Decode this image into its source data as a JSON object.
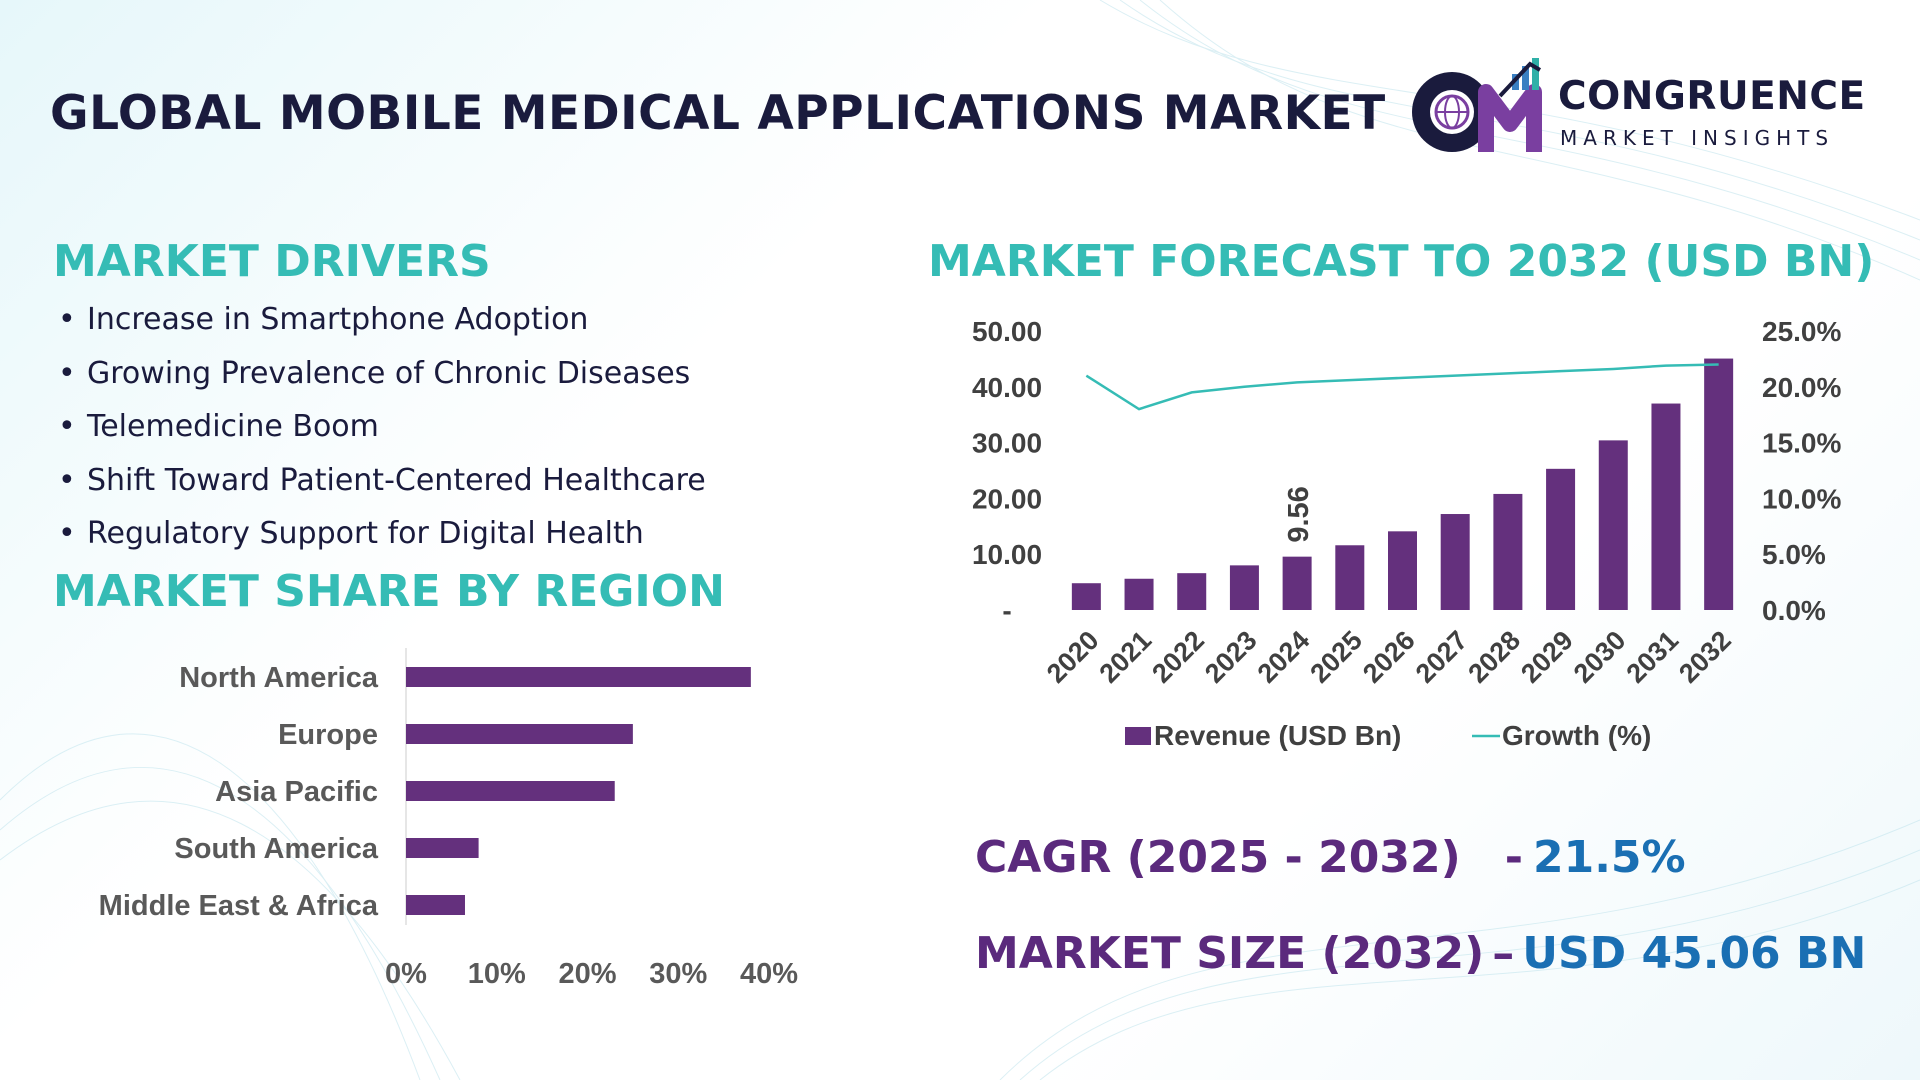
{
  "title": "GLOBAL MOBILE MEDICAL APPLICATIONS MARKET",
  "logo": {
    "name": "CONGRUENCE",
    "tagline": "MARKET INSIGHTS",
    "icon": "cm-globe-chart-logo"
  },
  "colors": {
    "heading": "#35bcb5",
    "title": "#1a1b3d",
    "bar": "#64307d",
    "line": "#35bcb5",
    "kpi_label": "#5b2a7d",
    "kpi_value": "#1a6fb3"
  },
  "drivers": {
    "heading": "MARKET DRIVERS",
    "items": [
      "Increase in Smartphone Adoption",
      "Growing Prevalence of Chronic Diseases",
      "Telemedicine Boom",
      "Shift Toward Patient-Centered Healthcare",
      "Regulatory Support for Digital Health"
    ]
  },
  "region": {
    "heading": "MARKET SHARE BY REGION"
  },
  "forecast": {
    "heading": "MARKET FORECAST TO 2032 (USD BN)"
  },
  "kpis": {
    "cagr_label": "CAGR (2025 - 2032)",
    "cagr_value": "21.5%",
    "size_label": "MARKET SIZE (2032)",
    "size_value": "USD 45.06 BN"
  },
  "chart_data": [
    {
      "type": "bar",
      "orientation": "horizontal",
      "categories": [
        "North America",
        "Europe",
        "Asia Pacific",
        "South America",
        "Middle East & Africa"
      ],
      "values": [
        0.38,
        0.25,
        0.23,
        0.08,
        0.065
      ],
      "x_ticks": [
        "0%",
        "10%",
        "20%",
        "30%",
        "40%"
      ],
      "xlim": [
        0,
        0.4
      ],
      "grid": false
    },
    {
      "type": "bar+line",
      "x": [
        "2020",
        "2021",
        "2022",
        "2023",
        "2024",
        "2025",
        "2026",
        "2027",
        "2028",
        "2029",
        "2030",
        "2031",
        "2032"
      ],
      "series": [
        {
          "name": "Revenue (USD Bn)",
          "type": "bar",
          "axis": "left",
          "values": [
            4.8,
            5.6,
            6.6,
            8.0,
            9.56,
            11.6,
            14.1,
            17.2,
            20.8,
            25.3,
            30.4,
            37.0,
            45.06
          ]
        },
        {
          "name": "Growth (%)",
          "type": "line",
          "axis": "right",
          "values": [
            21.0,
            18.0,
            19.5,
            20.0,
            20.4,
            20.6,
            20.8,
            21.0,
            21.2,
            21.4,
            21.6,
            21.9,
            22.0
          ]
        }
      ],
      "data_labels": [
        {
          "index": 4,
          "text": "9.56"
        }
      ],
      "y_left_ticks": [
        "-",
        "10.00",
        "20.00",
        "30.00",
        "40.00",
        "50.00"
      ],
      "y_right_ticks": [
        "0.0%",
        "5.0%",
        "10.0%",
        "15.0%",
        "20.0%",
        "25.0%"
      ],
      "ylim_left": [
        0,
        50
      ],
      "ylim_right": [
        0,
        25
      ],
      "legend_position": "bottom",
      "grid": false
    }
  ]
}
